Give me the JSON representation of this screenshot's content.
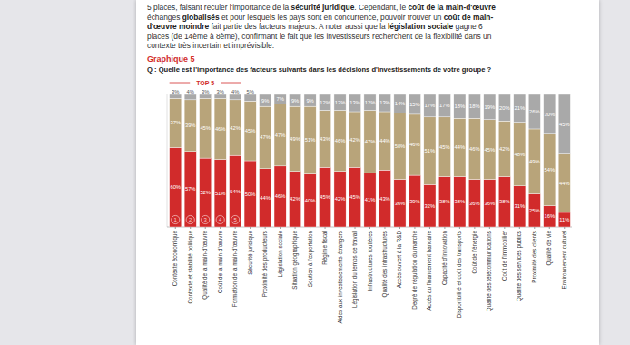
{
  "paragraph": [
    [
      {
        "text": "5 places, faisant reculer l'importance de la ",
        "bold": false
      },
      {
        "text": "sécurité juridique",
        "bold": true
      },
      {
        "text": ". Cependant, le ",
        "bold": false
      },
      {
        "text": "coût de la main-d'œuvre",
        "bold": true
      }
    ],
    [
      {
        "text": "échanges ",
        "bold": false
      },
      {
        "text": "globalisés",
        "bold": true
      },
      {
        "text": " et pour lesquels les pays sont en concurrence, pouvoir trouver un ",
        "bold": false
      },
      {
        "text": "coût de main-",
        "bold": true
      }
    ],
    [
      {
        "text": "d'œuvre moindre",
        "bold": true
      },
      {
        "text": " fait partie des facteurs majeurs. A noter aussi que la ",
        "bold": false
      },
      {
        "text": "législation sociale",
        "bold": true
      },
      {
        "text": " gagne 6",
        "bold": false
      }
    ],
    [
      {
        "text": "places (de 14ème à 8ème), confirmant le fait que les investisseurs recherchent de la flexibilité dans un",
        "bold": false
      }
    ],
    [
      {
        "text": "contexte très incertain et imprévisible.",
        "bold": false
      }
    ]
  ],
  "chart_data": {
    "type": "bar",
    "stacked": true,
    "data_labels": true,
    "tick_labels": "x",
    "title": "Graphique 5",
    "subtitle": "Q : Quelle est l'importance des facteurs suivants dans les décisions d'investissements de votre groupe ?",
    "annotations": [
      "TOP 5"
    ],
    "ranks": [
      1,
      2,
      3,
      4,
      5
    ],
    "ylim": [
      0,
      100
    ],
    "categories": [
      "Contexte économique",
      "Contexte et stabilité politique",
      "Qualité de la main-d'œuvre",
      "Coût de la main-d'œuvre",
      "Formation de la main-d'œuvre",
      "Sécurité juridique",
      "Proximité des producteurs",
      "Législation sociale",
      "Situation géographique",
      "Soutien à l'exportation",
      "Régime fiscal",
      "Aides aux investissements étrangers",
      "Législation du temps de travail",
      "Infrastructures routières",
      "Qualité des infrastructures",
      "Accès ouvert à la R&D",
      "Degré de régulation du marché",
      "Accès au financement bancaire",
      "Capacité d'innovation",
      "Disponibilité et coût des transports",
      "Coût de l'énergie",
      "Qualité des télécommunications",
      "Coût de l'immobilier",
      "Qualité des services publics",
      "Proximité des clients",
      "Qualité de vie",
      "Environnement culturel"
    ],
    "series": [
      {
        "color": "#d12b2b",
        "values": [
          60,
          57,
          52,
          51,
          54,
          50,
          44,
          46,
          42,
          40,
          45,
          42,
          45,
          41,
          43,
          36,
          39,
          32,
          38,
          38,
          36,
          36,
          38,
          31,
          25,
          16,
          11
        ],
        "value_labels": [
          "60%",
          "57%",
          "52%",
          "51%",
          "54%",
          "50%",
          "44%",
          "46%",
          "42%",
          "40%",
          "45%",
          "42%",
          "45%",
          "41%",
          "43%",
          "36%",
          "39%",
          "32%",
          "38%",
          "38%",
          "36%",
          "36%",
          "38%",
          "31%",
          "25%",
          "16%",
          "11%"
        ]
      },
      {
        "color": "#b8a47a",
        "values": [
          37,
          39,
          45,
          46,
          42,
          45,
          47,
          47,
          49,
          51,
          43,
          46,
          42,
          47,
          44,
          50,
          46,
          51,
          45,
          44,
          46,
          45,
          42,
          48,
          49,
          54,
          44
        ],
        "value_labels": [
          "37%",
          "39%",
          "45%",
          "46%",
          "42%",
          "45%",
          "47%",
          "47%",
          "49%",
          "51%",
          "43%",
          "46%",
          "42%",
          "47%",
          "44%",
          "50%",
          "46%",
          "51%",
          "45%",
          "44%",
          "46%",
          "45%",
          "42%",
          "48%",
          "49%",
          "54%",
          "44%"
        ]
      },
      {
        "color": "#a9a9a9",
        "values": [
          3,
          4,
          3,
          3,
          4,
          5,
          9,
          7,
          9,
          9,
          12,
          12,
          13,
          12,
          13,
          14,
          15,
          17,
          17,
          18,
          18,
          19,
          20,
          21,
          26,
          30,
          45
        ],
        "value_labels": [
          "3%",
          "4%",
          "3%",
          "3%",
          "4%",
          "5%",
          "9%",
          "7%",
          "9%",
          "9%",
          "12%",
          "12%",
          "13%",
          "12%",
          "13%",
          "14%",
          "15%",
          "17%",
          "17%",
          "18%",
          "18%",
          "19%",
          "20%",
          "21%",
          "26%",
          "30%",
          "45%"
        ]
      }
    ]
  }
}
